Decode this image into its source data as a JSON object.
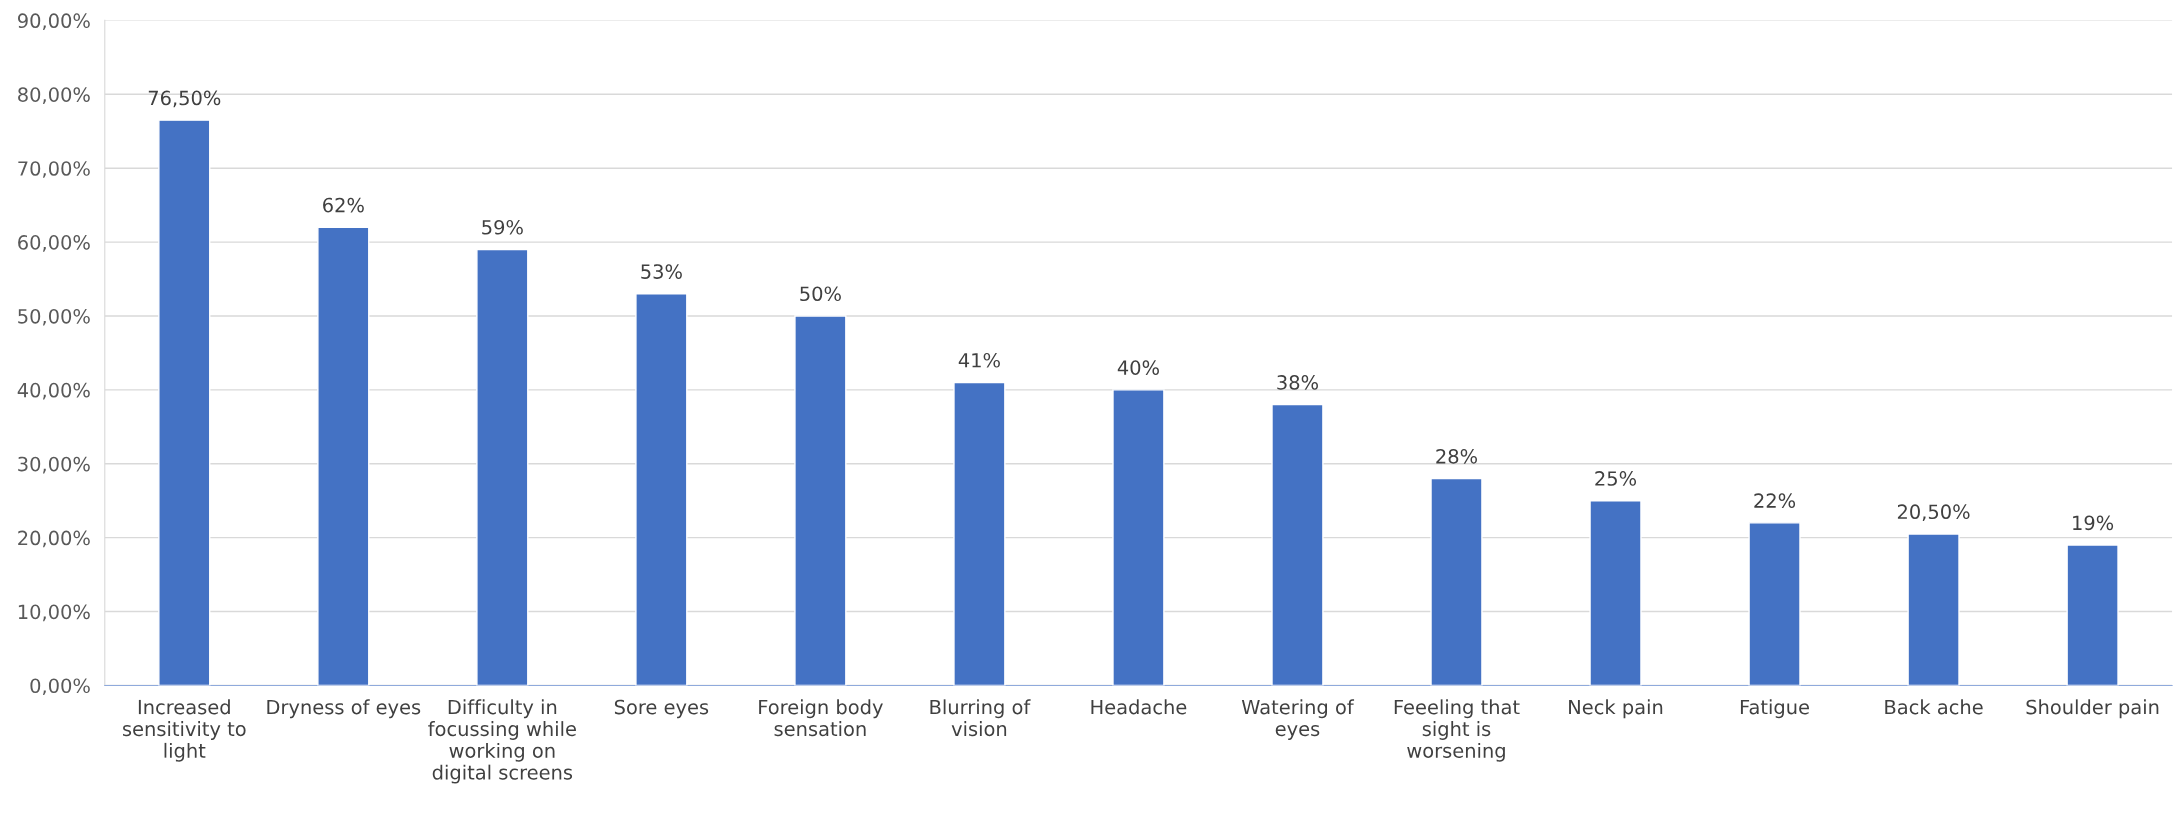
{
  "chart_data": {
    "type": "bar",
    "categories": [
      "Increased\nsensitivity to\nlight",
      "Dryness of eyes",
      "Difficulty in\nfocussing while\nworking on\ndigital screens",
      "Sore eyes",
      "Foreign body\nsensation",
      "Blurring of\nvision",
      "Headache",
      "Watering of\neyes",
      "Feeeling that\nsight is\nworsening",
      "Neck pain",
      "Fatigue",
      "Back ache",
      "Shoulder pain"
    ],
    "values": [
      76.5,
      62,
      59,
      53,
      50,
      41,
      40,
      38,
      28,
      25,
      22,
      20.5,
      19
    ],
    "value_labels": [
      "76,50%",
      "62%",
      "59%",
      "53%",
      "50%",
      "41%",
      "40%",
      "38%",
      "28%",
      "25%",
      "22%",
      "20,50%",
      "19%"
    ],
    "color": "#4472c4",
    "ylim": [
      0,
      90
    ],
    "yticks": [
      {
        "value": 0,
        "label": "0,00%"
      },
      {
        "value": 10,
        "label": "10,00%"
      },
      {
        "value": 20,
        "label": "20,00%"
      },
      {
        "value": 30,
        "label": "30,00%"
      },
      {
        "value": 40,
        "label": "40,00%"
      },
      {
        "value": 50,
        "label": "50,00%"
      },
      {
        "value": 60,
        "label": "60,00%"
      },
      {
        "value": 70,
        "label": "70,00%"
      },
      {
        "value": 80,
        "label": "80,00%"
      },
      {
        "value": 90,
        "label": "90,00%"
      }
    ],
    "grid": "y",
    "legend": false
  }
}
